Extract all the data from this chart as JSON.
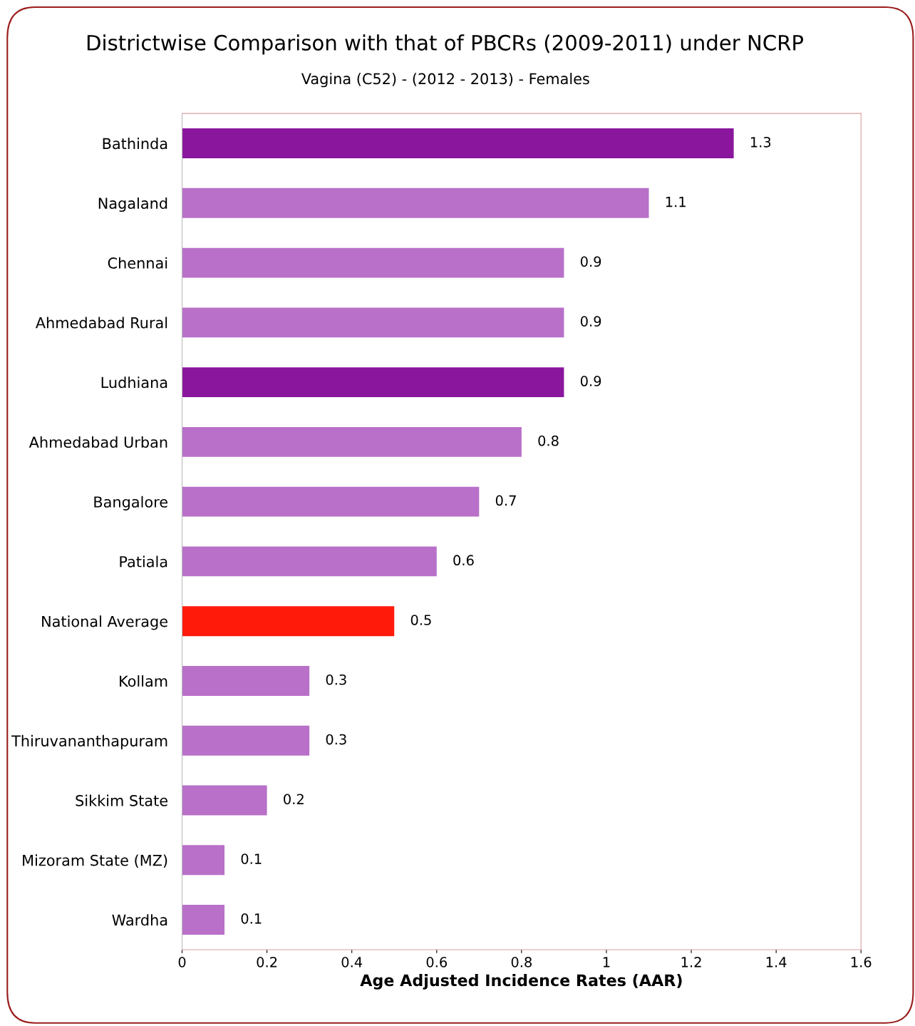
{
  "chart_data": {
    "type": "bar",
    "orientation": "horizontal",
    "title": "Districtwise Comparison with that of PBCRs (2009-2011) under NCRP",
    "subtitle": "Vagina (C52) - (2012 - 2013) - Females",
    "xlabel": "Age Adjusted Incidence Rates (AAR)",
    "categories": [
      "Bathinda",
      "Nagaland",
      "Chennai",
      "Ahmedabad Rural",
      "Ludhiana",
      "Ahmedabad Urban",
      "Bangalore",
      "Patiala",
      "National Average",
      "Kollam",
      "Thiruvananthapuram",
      "Sikkim State",
      "Mizoram State (MZ)",
      "Wardha"
    ],
    "values": [
      1.3,
      1.1,
      0.9,
      0.9,
      0.9,
      0.8,
      0.7,
      0.6,
      0.5,
      0.3,
      0.3,
      0.2,
      0.1,
      0.1
    ],
    "colors": [
      "#8a169e",
      "#b870c8",
      "#b870c8",
      "#b870c8",
      "#8a169e",
      "#b870c8",
      "#b870c8",
      "#b870c8",
      "#ff1a0a",
      "#b870c8",
      "#b870c8",
      "#b870c8",
      "#b870c8",
      "#b870c8"
    ],
    "xlim": [
      0,
      1.6
    ],
    "xticks": [
      0,
      0.2,
      0.4,
      0.6,
      0.8,
      1,
      1.2,
      1.4,
      1.6
    ],
    "data_labels": true,
    "grid": false,
    "legend": false
  }
}
